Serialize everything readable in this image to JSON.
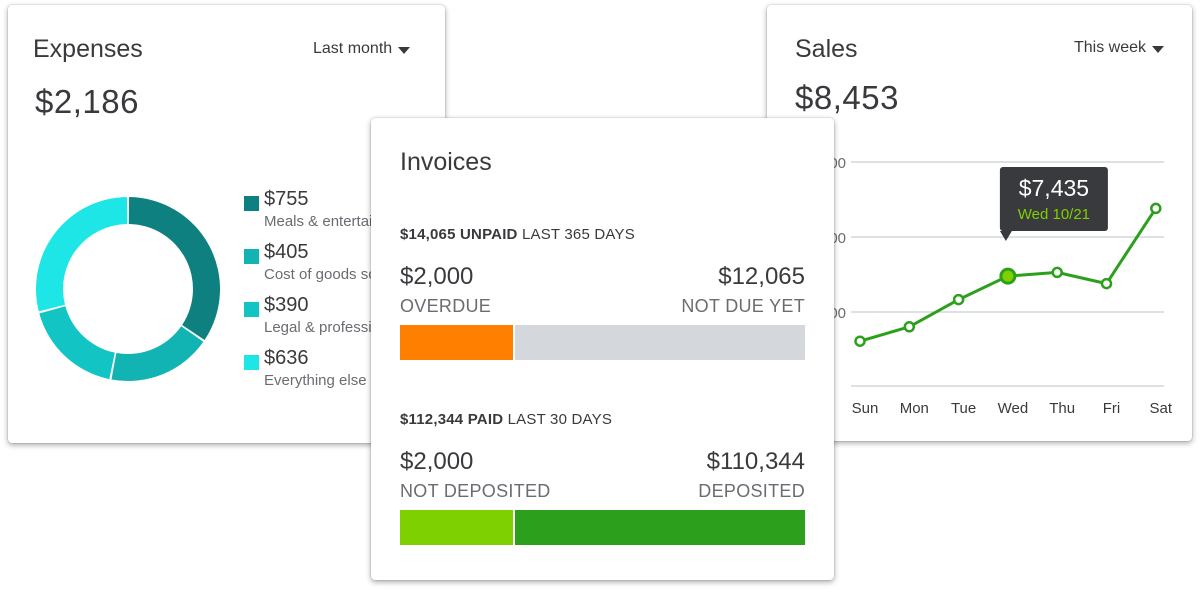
{
  "expenses": {
    "title": "Expenses",
    "period": "Last month",
    "total": "$2,186",
    "colors": [
      "#0e8080",
      "#11b3b3",
      "#12c4c4",
      "#1ee6e6"
    ],
    "items": [
      {
        "amount": "$755",
        "label": "Meals & entertainment",
        "value": 755,
        "color": "#0e8080"
      },
      {
        "amount": "$405",
        "label": "Cost of goods sold",
        "value": 405,
        "color": "#11b3b3"
      },
      {
        "amount": "$390",
        "label": "Legal & professional fees",
        "value": 390,
        "color": "#12c4c4"
      },
      {
        "amount": "$636",
        "label": "Everything else",
        "value": 636,
        "color": "#1ee6e6"
      }
    ]
  },
  "sales": {
    "title": "Sales",
    "period": "This week",
    "total": "$8,453",
    "line_color": "#2ca01c",
    "tooltip": {
      "amount": "$7,435",
      "date": "Wed 10/21"
    },
    "chart_data": {
      "type": "line",
      "categories": [
        "Sun",
        "Mon",
        "Tue",
        "Wed",
        "Thu",
        "Fri",
        "Sat"
      ],
      "values": [
        5400,
        5850,
        6700,
        7435,
        7550,
        7200,
        9550
      ],
      "ytick_labels": [
        "00",
        "00",
        "00"
      ],
      "highlight_index": 3
    }
  },
  "invoices": {
    "title": "Invoices",
    "unpaid": {
      "amount": "$14,065",
      "keyword": "UNPAID",
      "period": "LAST 365 DAYS",
      "left_amount": "$2,000",
      "left_label": "OVERDUE",
      "right_amount": "$12,065",
      "right_label": "NOT DUE YET",
      "left_value": 2000,
      "right_value": 12065,
      "left_color": "#ff8000",
      "right_color": "#d4d7dc"
    },
    "paid": {
      "amount": "$112,344",
      "keyword": "PAID",
      "period": "LAST 30 DAYS",
      "left_amount": "$2,000",
      "left_label": "NOT DEPOSITED",
      "right_amount": "$110,344",
      "right_label": "DEPOSITED",
      "left_value": 2000,
      "right_value": 110344,
      "left_color": "#7fd000",
      "right_color": "#2ca01c"
    }
  }
}
